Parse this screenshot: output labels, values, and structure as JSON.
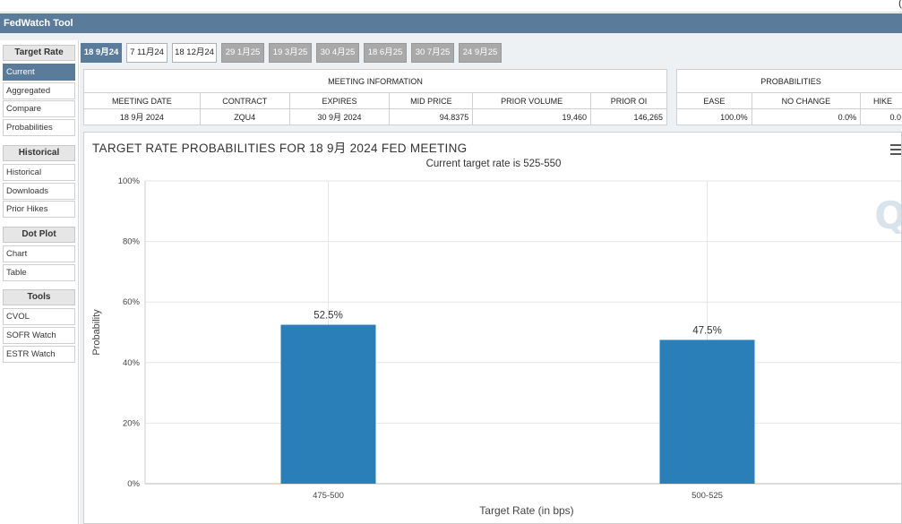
{
  "window": {
    "title": "FedWatch Tool"
  },
  "sidebar": {
    "sections": [
      {
        "heading": "Target Rate",
        "items": [
          "Current",
          "Aggregated",
          "Compare",
          "Probabilities"
        ]
      },
      {
        "heading": "Historical",
        "items": [
          "Historical",
          "Downloads",
          "Prior Hikes"
        ]
      },
      {
        "heading": "Dot Plot",
        "items": [
          "Chart",
          "Table"
        ]
      },
      {
        "heading": "Tools",
        "items": [
          "CVOL",
          "SOFR Watch",
          "ESTR Watch"
        ]
      }
    ],
    "active": "Current"
  },
  "tabs": [
    {
      "label": "18 9月24",
      "state": "active"
    },
    {
      "label": "7 11月24",
      "state": "plain"
    },
    {
      "label": "18 12月24",
      "state": "plain"
    },
    {
      "label": "29 1月25",
      "state": "gray"
    },
    {
      "label": "19 3月25",
      "state": "gray"
    },
    {
      "label": "30 4月25",
      "state": "gray"
    },
    {
      "label": "18 6月25",
      "state": "gray"
    },
    {
      "label": "30 7月25",
      "state": "gray"
    },
    {
      "label": "24 9月25",
      "state": "gray"
    }
  ],
  "meeting_info": {
    "heading": "MEETING INFORMATION",
    "columns": [
      "MEETING DATE",
      "CONTRACT",
      "EXPIRES",
      "MID PRICE",
      "PRIOR VOLUME",
      "PRIOR OI"
    ],
    "row": [
      "18 9月 2024",
      "ZQU4",
      "30 9月 2024",
      "94.8375",
      "19,460",
      "146,265"
    ]
  },
  "probabilities": {
    "heading": "PROBABILITIES",
    "columns": [
      "EASE",
      "NO CHANGE",
      "HIKE"
    ],
    "row": [
      "100.0%",
      "0.0%",
      "0.0"
    ]
  },
  "chart_data": {
    "type": "bar",
    "title": "TARGET RATE PROBABILITIES FOR 18 9月 2024 FED MEETING",
    "subtitle": "Current target rate is 525-550",
    "xlabel": "Target Rate (in bps)",
    "ylabel": "Probability",
    "categories": [
      "475-500",
      "500-525"
    ],
    "values": [
      52.5,
      47.5
    ],
    "data_labels": [
      "52.5%",
      "47.5%"
    ],
    "yticks": [
      "0%",
      "20%",
      "40%",
      "60%",
      "80%",
      "100%"
    ],
    "ylim": [
      0,
      100
    ],
    "grid": true,
    "bar_color": "#2a7fb8",
    "watermark": "Q"
  },
  "colors": {
    "accent": "#5b7b9b",
    "bar": "#2a7fb8"
  }
}
